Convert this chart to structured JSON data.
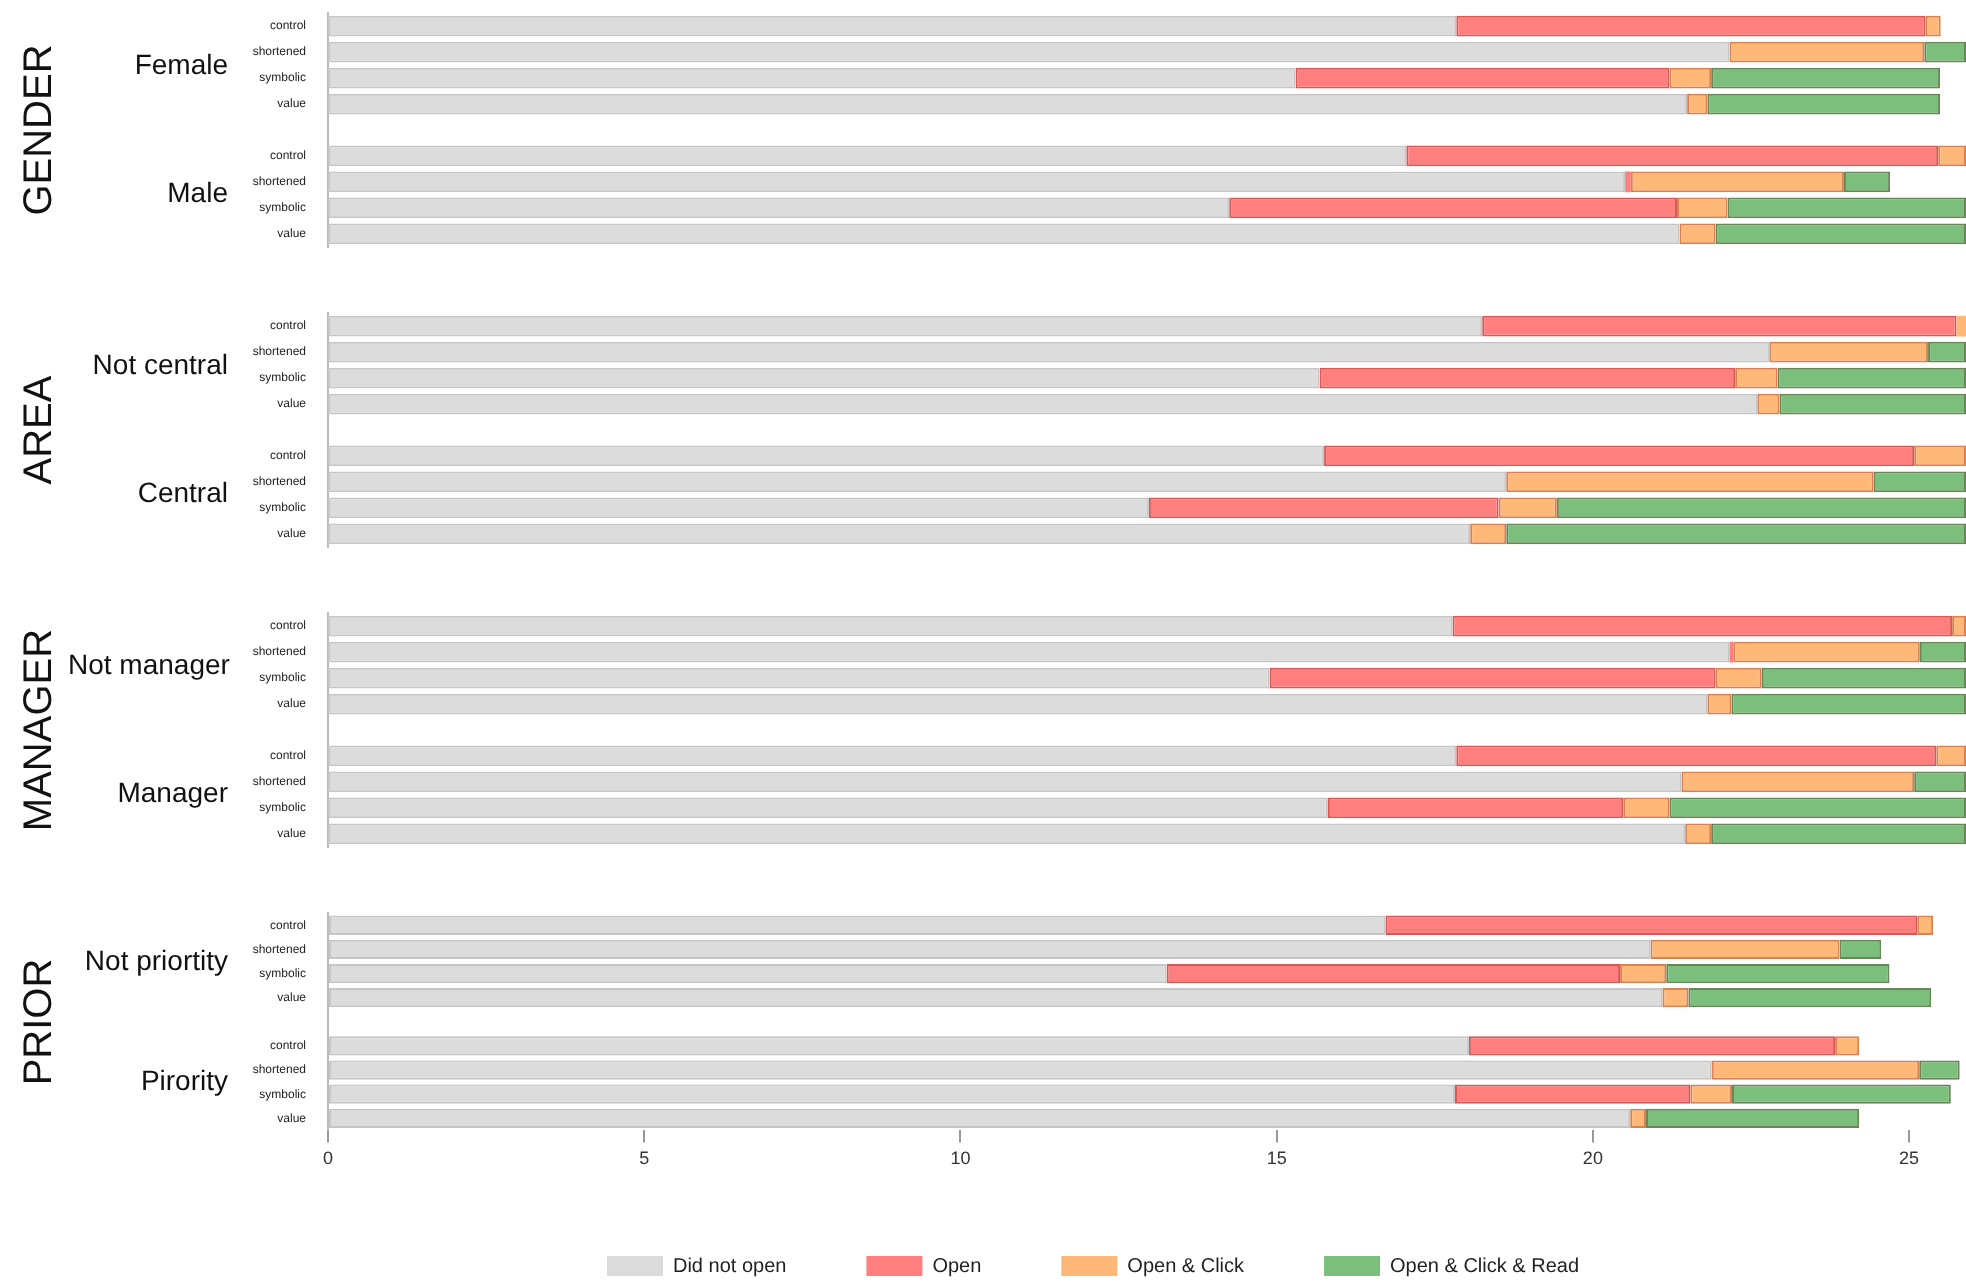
{
  "chart_data": [
    {
      "type": "bar",
      "orientation": "horizontal",
      "stacked": true,
      "ylabel": "GENDER",
      "annotations": [
        "Female",
        "Male"
      ],
      "tick_labels": "y",
      "xlim": [
        0,
        25.9
      ],
      "xticks": [
        0,
        5,
        10,
        15,
        20,
        25
      ],
      "categories": [
        "control",
        "shortened",
        "symbolic",
        "value",
        "control",
        "shortened",
        "symbolic",
        "value"
      ],
      "series": [
        {
          "color": "#dcdcdc",
          "values": [
            17.84,
            22.16,
            15.3,
            21.49,
            17.05,
            20.51,
            14.25,
            21.37
          ]
        },
        {
          "color": "#ff7f7f",
          "values": [
            7.42,
            0,
            5.91,
            0,
            8.41,
            0.09,
            7.08,
            0
          ]
        },
        {
          "color": "#ffb877",
          "values": [
            0.24,
            3.08,
            0.66,
            0.32,
            0.44,
            3.37,
            0.8,
            0.57
          ]
        },
        {
          "color": "#7cbf7c",
          "values": [
            0,
            0.66,
            3.62,
            3.68,
            0,
            0.73,
            3.77,
            3.96
          ]
        }
      ]
    },
    {
      "type": "bar",
      "orientation": "horizontal",
      "stacked": true,
      "ylabel": "AREA",
      "annotations": [
        "Not central",
        "Central"
      ],
      "tick_labels": "y",
      "xlim": [
        0,
        25.9
      ],
      "xticks": [
        0,
        5,
        10,
        15,
        20,
        25
      ],
      "categories": [
        "control",
        "shortened",
        "symbolic",
        "value",
        "control",
        "shortened",
        "symbolic",
        "value"
      ],
      "series": [
        {
          "color": "#dcdcdc",
          "values": [
            18.25,
            22.79,
            15.68,
            22.6,
            15.75,
            18.63,
            12.98,
            18.06
          ]
        },
        {
          "color": "#ff7f7f",
          "values": [
            7.5,
            0,
            6.57,
            0,
            9.33,
            0,
            5.53,
            0
          ]
        },
        {
          "color": "#ffb877",
          "values": [
            0.15,
            2.51,
            0.67,
            0.35,
            0.82,
            5.81,
            0.92,
            0.57
          ]
        },
        {
          "color": "#7cbf7c",
          "values": [
            0,
            0.6,
            2.98,
            2.95,
            0,
            1.46,
            6.47,
            7.27
          ]
        }
      ]
    },
    {
      "type": "bar",
      "orientation": "horizontal",
      "stacked": true,
      "ylabel": "MANAGER",
      "annotations": [
        "Not manager",
        "Manager"
      ],
      "tick_labels": "y",
      "xlim": [
        0,
        25.9
      ],
      "xticks": [
        0,
        5,
        10,
        15,
        20,
        25
      ],
      "categories": [
        "control",
        "shortened",
        "symbolic",
        "value",
        "control",
        "shortened",
        "symbolic",
        "value"
      ],
      "series": [
        {
          "color": "#dcdcdc",
          "values": [
            17.78,
            22.16,
            14.89,
            21.81,
            17.84,
            21.4,
            15.81,
            21.46
          ]
        },
        {
          "color": "#ff7f7f",
          "values": [
            7.9,
            0.06,
            7.05,
            0,
            7.59,
            0,
            4.67,
            0
          ]
        },
        {
          "color": "#ffb877",
          "values": [
            0.22,
            2.95,
            0.73,
            0.38,
            0.47,
            3.68,
            0.73,
            0.41
          ]
        },
        {
          "color": "#7cbf7c",
          "values": [
            0,
            0.73,
            3.23,
            3.71,
            0,
            0.82,
            4.69,
            4.03
          ]
        }
      ]
    },
    {
      "type": "bar",
      "orientation": "horizontal",
      "stacked": true,
      "ylabel": "PRIOR",
      "annotations": [
        "Not priortity",
        "Pirority"
      ],
      "xlim": [
        0,
        25.9
      ],
      "xticks": [
        0,
        5,
        10,
        15,
        20,
        25
      ],
      "legend": "bottom",
      "categories": [
        "control",
        "shortened",
        "symbolic",
        "value",
        "control",
        "shortened",
        "symbolic",
        "value"
      ],
      "series": [
        {
          "name": "Did not open",
          "color": "#dcdcdc",
          "values": [
            16.72,
            20.91,
            13.26,
            21.1,
            18.04,
            21.88,
            17.82,
            20.59
          ]
        },
        {
          "name": "Open",
          "color": "#ff7f7f",
          "values": [
            8.41,
            0,
            7.17,
            0,
            5.79,
            0,
            3.72,
            0
          ]
        },
        {
          "name": "Open & Click",
          "color": "#ffb877",
          "values": [
            0.25,
            2.99,
            0.73,
            0.41,
            0.38,
            3.28,
            0.66,
            0.25
          ]
        },
        {
          "name": "Open & Click & Read",
          "color": "#7cbf7c",
          "values": [
            0,
            0.66,
            3.53,
            3.84,
            0,
            0.64,
            3.46,
            3.37
          ]
        }
      ]
    }
  ]
}
